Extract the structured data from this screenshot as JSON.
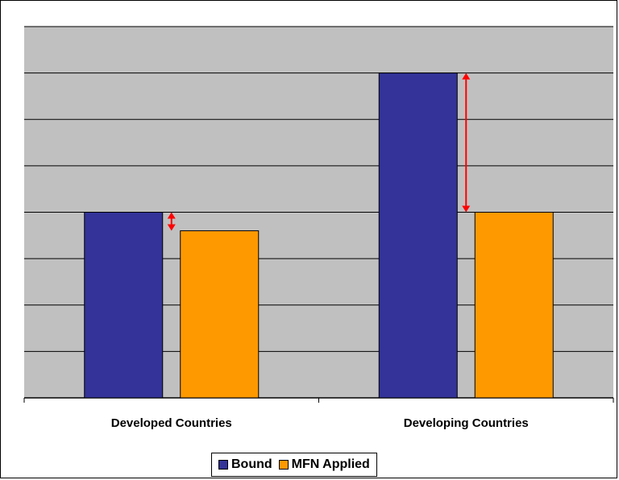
{
  "colors": {
    "plot_background": "#c0c0c0",
    "gridline": "#000000",
    "bound": "#333399",
    "mfn_applied": "#ff9900",
    "gap_arrow": "#ff0000"
  },
  "chart_data": {
    "type": "bar",
    "categories": [
      "Developed Countries",
      "Developing Countries"
    ],
    "series": [
      {
        "name": "Bound",
        "values": [
          4.0,
          7.0
        ]
      },
      {
        "name": "MFN Applied",
        "values": [
          3.6,
          4.0
        ]
      }
    ],
    "ylim": [
      0,
      8
    ],
    "y_step": 1,
    "y_ticks_labeled": false,
    "grid": true,
    "legend": "bottom",
    "annotations": [
      {
        "type": "double-arrow",
        "category": "Developed Countries",
        "from": 3.6,
        "to": 4.0
      },
      {
        "type": "double-arrow",
        "category": "Developing Countries",
        "from": 4.0,
        "to": 7.0
      }
    ],
    "title": "",
    "xlabel": "",
    "ylabel": ""
  }
}
